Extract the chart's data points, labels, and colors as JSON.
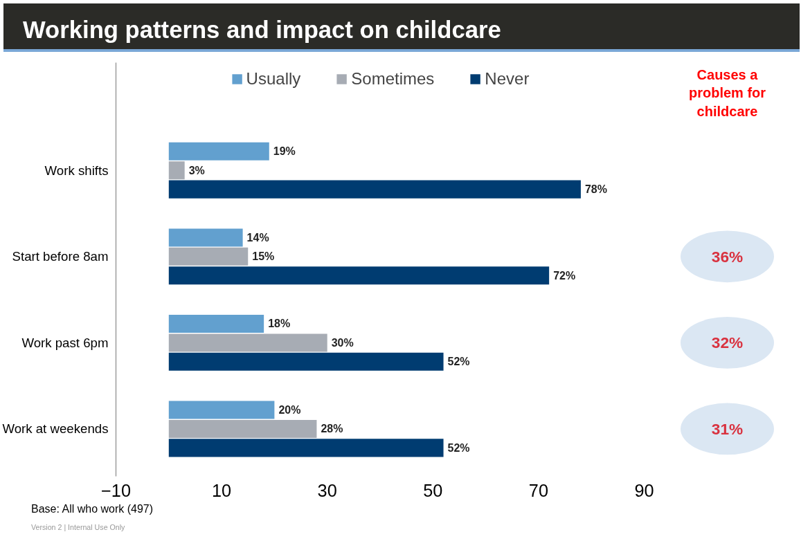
{
  "chart_data": {
    "type": "bar",
    "orientation": "horizontal",
    "title": "Working patterns and impact on childcare",
    "categories": [
      "Work shifts",
      "Start before 8am",
      "Work past 6pm",
      "Work at weekends"
    ],
    "series": [
      {
        "name": "Usually",
        "color": "#62a0cf",
        "values": [
          19,
          14,
          18,
          20
        ],
        "value_labels": [
          "19%",
          "14%",
          "18%",
          "20%"
        ]
      },
      {
        "name": "Sometimes",
        "color": "#a7acb4",
        "values": [
          3,
          15,
          30,
          28
        ],
        "value_labels": [
          "3%",
          "15%",
          "30%",
          "28%"
        ]
      },
      {
        "name": "Never",
        "color": "#003c71",
        "values": [
          78,
          72,
          52,
          52
        ],
        "value_labels": [
          "78%",
          "72%",
          "52%",
          "52%"
        ]
      }
    ],
    "xlim": [
      -10,
      90
    ],
    "xticks": [
      -10,
      10,
      30,
      50,
      70,
      90
    ],
    "grid": false,
    "legend": "top",
    "annotations": [
      "Causes a problem for childcare",
      "36%",
      "32%",
      "31%",
      "Base: All who work (497)",
      "Version 2 | Internal Use Only"
    ]
  }
}
